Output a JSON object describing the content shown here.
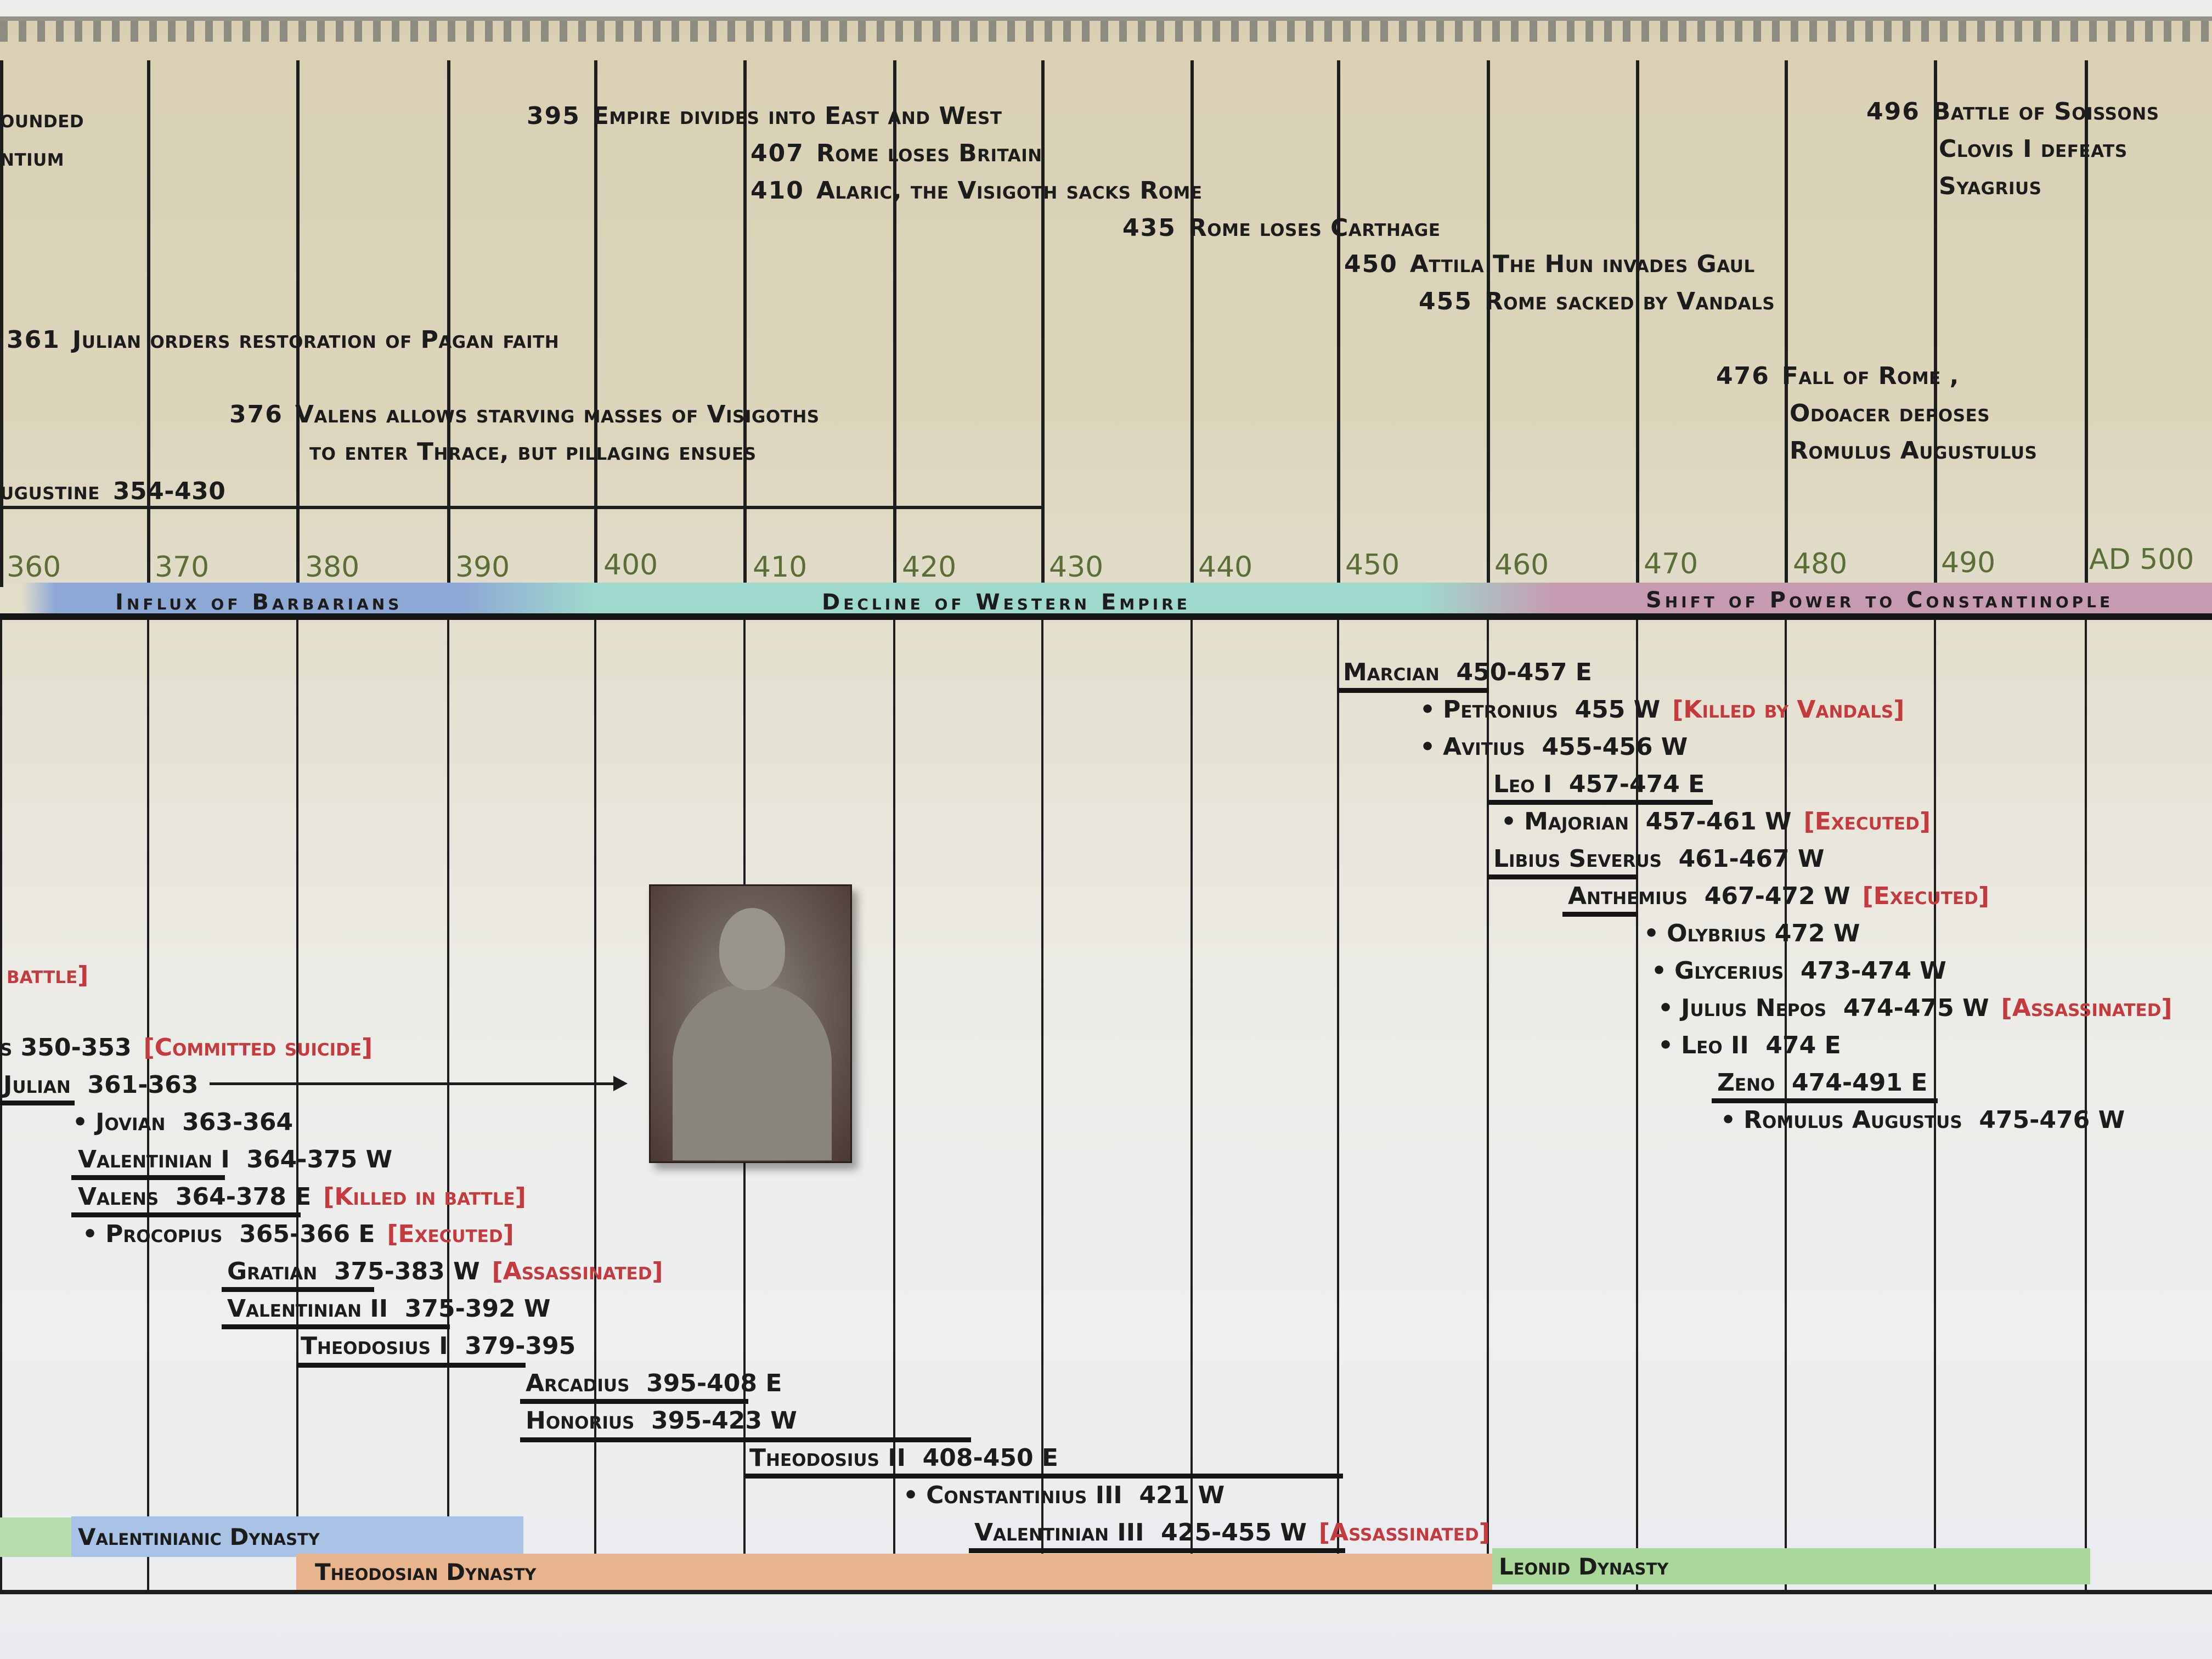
{
  "title": "Roman Empire Timeline 350-500 AD",
  "decades": [
    "360",
    "370",
    "380",
    "390",
    "400",
    "410",
    "420",
    "430",
    "440",
    "450",
    "460",
    "470",
    "480",
    "490",
    "AD 500"
  ],
  "events": [
    {
      "year": "",
      "text": "ounded",
      "cont": true
    },
    {
      "year": "",
      "text": "ntium",
      "cont": true
    },
    {
      "year": "395",
      "text": "Empire divides into East and West"
    },
    {
      "year": "407",
      "text": "Rome loses Britain"
    },
    {
      "year": "410",
      "text": "Alaric, the Visigoth sacks Rome"
    },
    {
      "year": "435",
      "text": "Rome loses Carthage"
    },
    {
      "year": "450",
      "text": "Attila The Hun invades Gaul"
    },
    {
      "year": "455",
      "text": "Rome sacked by Vandals"
    },
    {
      "year": "361",
      "text": "Julian orders restoration of Pagan faith"
    },
    {
      "year": "376",
      "text": "Valens allows starving masses of Visigoths"
    },
    {
      "year": "",
      "text": "to enter Thrace, but pillaging ensues"
    },
    {
      "year": "476",
      "text": "Fall of Rome ,"
    },
    {
      "year": "",
      "text": "Odoacer deposes"
    },
    {
      "year": "",
      "text": "Romulus Augustulus"
    },
    {
      "year": "496",
      "text": "Battle of Soissons"
    },
    {
      "year": "",
      "text": "Clovis I defeats"
    },
    {
      "year": "",
      "text": "Syagrius"
    }
  ],
  "people": {
    "augustine": "ugustine",
    "augustine_dates": "354-430"
  },
  "eras": [
    {
      "label": "Influx of Barbarians",
      "color": "#8fa9d6"
    },
    {
      "label": "Decline of Western Empire",
      "color": "#9fd8cc"
    },
    {
      "label": "Shift of Power to Constantinople",
      "color": "#c69bb1"
    }
  ],
  "emperors": [
    {
      "name": "",
      "dates": "",
      "fate": "battle]"
    },
    {
      "name": "s",
      "dates": "350-353",
      "fate": "[Committed suicide]"
    },
    {
      "name": "Julian",
      "dates": "361-363",
      "fate": ""
    },
    {
      "bullet": "•",
      "name": "Jovian",
      "dates": "363-364",
      "fate": ""
    },
    {
      "name": "Valentinian I",
      "dates": "364-375 W",
      "fate": ""
    },
    {
      "name": "Valens",
      "dates": "364-378 E",
      "fate": "[Killed in battle]"
    },
    {
      "bullet": "•",
      "name": "Procopius",
      "dates": "365-366 E",
      "fate": "[Executed]"
    },
    {
      "name": "Gratian",
      "dates": "375-383 W",
      "fate": "[Assassinated]"
    },
    {
      "name": "Valentinian II",
      "dates": "375-392 W",
      "fate": ""
    },
    {
      "name": "Theodosius I",
      "dates": "379-395",
      "fate": ""
    },
    {
      "name": "Arcadius",
      "dates": "395-408 E",
      "fate": ""
    },
    {
      "name": "Honorius",
      "dates": "395-423 W",
      "fate": ""
    },
    {
      "name": "Theodosius II",
      "dates": "408-450 E",
      "fate": ""
    },
    {
      "bullet": "•",
      "name": "Constantinius III",
      "dates": "421 W",
      "fate": ""
    },
    {
      "name": "Valentinian III",
      "dates": "425-455 W",
      "fate": "[Assassinated]"
    },
    {
      "name": "Marcian",
      "dates": "450-457 E",
      "fate": ""
    },
    {
      "bullet": "•",
      "name": "Petronius",
      "dates": "455 W",
      "fate": "[Killed by Vandals]"
    },
    {
      "bullet": "•",
      "name": "Avitius",
      "dates": "455-456 W",
      "fate": ""
    },
    {
      "name": "Leo I",
      "dates": "457-474 E",
      "fate": ""
    },
    {
      "bullet": "•",
      "name": "Majorian",
      "dates": "457-461 W",
      "fate": "[Executed]"
    },
    {
      "name": "Libius Severus",
      "dates": "461-467 W",
      "fate": ""
    },
    {
      "name": "Anthemius",
      "dates": "467-472 W",
      "fate": "[Executed]"
    },
    {
      "bullet": "•",
      "name": "Olybrius",
      "dates": "472 W",
      "fate": ""
    },
    {
      "bullet": "•",
      "name": "Glycerius",
      "dates": "473-474 W",
      "fate": ""
    },
    {
      "bullet": "•",
      "name": "Julius Nepos",
      "dates": "474-475 W",
      "fate": "[Assassinated]"
    },
    {
      "bullet": "•",
      "name": "Leo II",
      "dates": "474 E",
      "fate": ""
    },
    {
      "name": "Zeno",
      "dates": "474-491 E",
      "fate": ""
    },
    {
      "bullet": "•",
      "name": "Romulus Augustus",
      "dates": "475-476 W",
      "fate": ""
    }
  ],
  "dynasties": [
    {
      "label": "",
      "color": "#b9dcae"
    },
    {
      "label": "Valentinianic Dynasty",
      "color": "#a9c3e6"
    },
    {
      "label": "Theodosian Dynasty",
      "color": "#e7b48e"
    },
    {
      "label": "Leonid Dynasty",
      "color": "#a9d89a"
    }
  ],
  "portrait": {
    "label": "bust-portrait-julian"
  }
}
